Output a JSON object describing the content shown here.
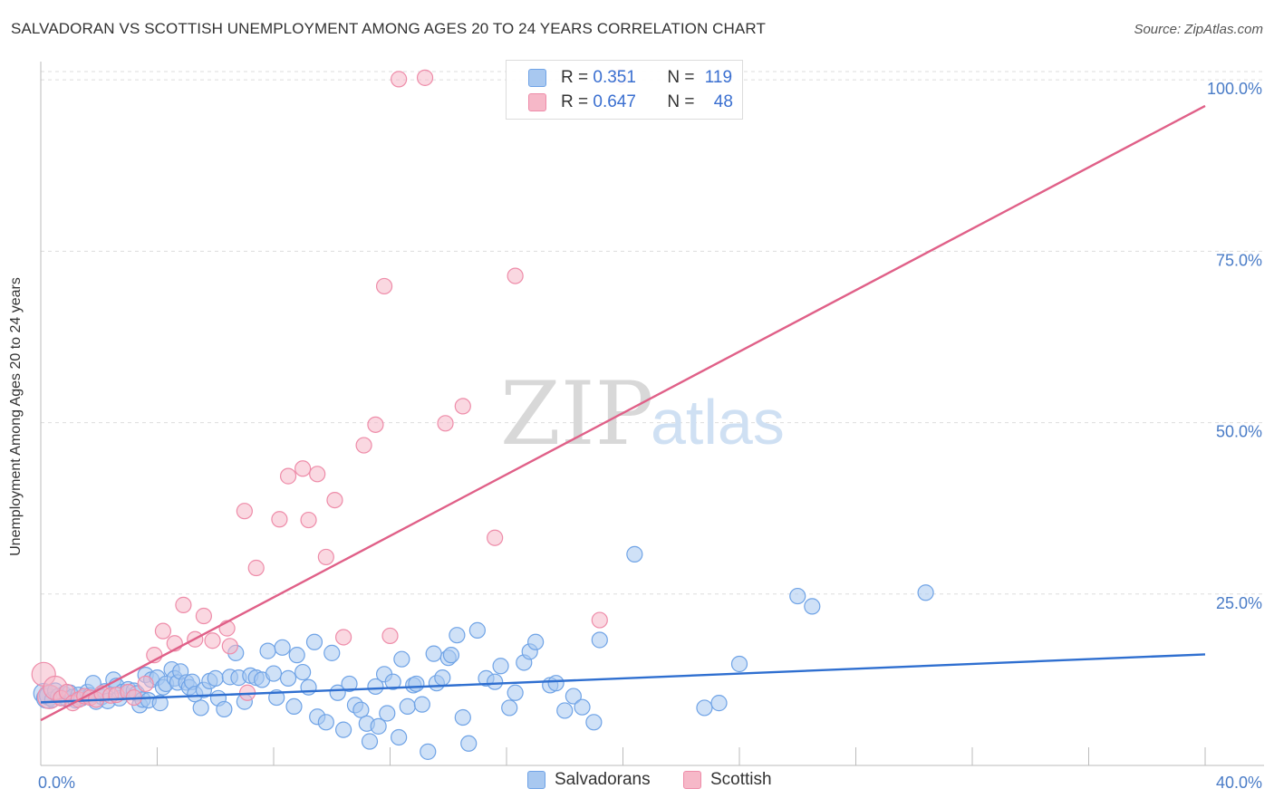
{
  "title": "SALVADORAN VS SCOTTISH UNEMPLOYMENT AMONG AGES 20 TO 24 YEARS CORRELATION CHART",
  "source": "Source: ZipAtlas.com",
  "watermark": {
    "zip": "ZIP",
    "atlas": "atlas"
  },
  "legend": {
    "rows": [
      {
        "r_label": "R = ",
        "r_value": "0.351",
        "n_label": "N = ",
        "n_value": "119",
        "color": "#a8c8f0"
      },
      {
        "r_label": "R = ",
        "r_value": "0.647",
        "n_label": "N = ",
        "n_value": "48",
        "color": "#f6b8c8"
      }
    ]
  },
  "bottom_legend": [
    {
      "label": "Salvadorans",
      "color": "#a8c8f0"
    },
    {
      "label": "Scottish",
      "color": "#f6b8c8"
    }
  ],
  "chart_data": {
    "type": "scatter",
    "title": "SALVADORAN VS SCOTTISH UNEMPLOYMENT AMONG AGES 20 TO 24 YEARS CORRELATION CHART",
    "xlabel": "",
    "ylabel": "Unemployment Among Ages 20 to 24 years",
    "xlim": [
      0,
      40
    ],
    "ylim": [
      0,
      102
    ],
    "x_tick_labels": [
      "0.0%",
      "40.0%"
    ],
    "y_tick_values": [
      25,
      50,
      75,
      100
    ],
    "y_tick_labels": [
      "25.0%",
      "50.0%",
      "75.0%",
      "100.0%"
    ],
    "grid": true,
    "legend_position": "top-center",
    "series": [
      {
        "name": "Salvadorans",
        "color": "#6fa3e6",
        "fill": "#a8c8f0",
        "trend": {
          "x0": 0,
          "y0": 9.2,
          "x1": 40,
          "y1": 16.2,
          "color": "#2f6fd0"
        },
        "points": [
          [
            0.1,
            10.5
          ],
          [
            0.2,
            9.8
          ],
          [
            0.3,
            10.2
          ],
          [
            0.4,
            9.6
          ],
          [
            0.5,
            10.9
          ],
          [
            0.6,
            10.1
          ],
          [
            0.7,
            9.9
          ],
          [
            0.8,
            10.4
          ],
          [
            0.9,
            9.7
          ],
          [
            1.0,
            10.6
          ],
          [
            1.1,
            10.0
          ],
          [
            1.2,
            9.5
          ],
          [
            1.3,
            10.3
          ],
          [
            1.4,
            9.8
          ],
          [
            1.6,
            10.7
          ],
          [
            1.7,
            10.2
          ],
          [
            1.8,
            12.0
          ],
          [
            1.9,
            9.3
          ],
          [
            2.1,
            10.0
          ],
          [
            2.2,
            10.8
          ],
          [
            2.3,
            9.4
          ],
          [
            2.5,
            12.5
          ],
          [
            2.6,
            11.6
          ],
          [
            2.7,
            9.8
          ],
          [
            2.8,
            10.7
          ],
          [
            3.0,
            11.1
          ],
          [
            3.2,
            10.9
          ],
          [
            3.3,
            10.5
          ],
          [
            3.4,
            8.8
          ],
          [
            3.5,
            9.6
          ],
          [
            3.6,
            13.2
          ],
          [
            3.7,
            9.5
          ],
          [
            3.8,
            12.5
          ],
          [
            4.0,
            12.8
          ],
          [
            4.1,
            9.1
          ],
          [
            4.2,
            11.4
          ],
          [
            4.3,
            11.9
          ],
          [
            4.5,
            14.0
          ],
          [
            4.6,
            12.7
          ],
          [
            4.7,
            12.1
          ],
          [
            4.8,
            13.7
          ],
          [
            5.0,
            12.1
          ],
          [
            5.1,
            11.4
          ],
          [
            5.2,
            12.2
          ],
          [
            5.3,
            10.4
          ],
          [
            5.5,
            8.4
          ],
          [
            5.6,
            11.0
          ],
          [
            5.8,
            12.3
          ],
          [
            6.0,
            12.7
          ],
          [
            6.1,
            9.8
          ],
          [
            6.3,
            8.2
          ],
          [
            6.5,
            12.9
          ],
          [
            6.7,
            16.4
          ],
          [
            6.8,
            12.8
          ],
          [
            7.0,
            9.3
          ],
          [
            7.2,
            13.1
          ],
          [
            7.4,
            12.8
          ],
          [
            7.6,
            12.5
          ],
          [
            7.8,
            16.7
          ],
          [
            8.0,
            13.4
          ],
          [
            8.1,
            9.9
          ],
          [
            8.3,
            17.2
          ],
          [
            8.5,
            12.7
          ],
          [
            8.7,
            8.6
          ],
          [
            8.8,
            16.1
          ],
          [
            9.0,
            13.6
          ],
          [
            9.2,
            11.4
          ],
          [
            9.4,
            18.0
          ],
          [
            9.5,
            7.1
          ],
          [
            9.8,
            6.3
          ],
          [
            10.0,
            16.4
          ],
          [
            10.2,
            10.6
          ],
          [
            10.4,
            5.2
          ],
          [
            10.6,
            11.9
          ],
          [
            10.8,
            8.8
          ],
          [
            11.0,
            8.1
          ],
          [
            11.2,
            6.1
          ],
          [
            11.3,
            3.5
          ],
          [
            11.5,
            11.5
          ],
          [
            11.6,
            5.7
          ],
          [
            11.8,
            13.3
          ],
          [
            11.9,
            7.6
          ],
          [
            12.1,
            12.2
          ],
          [
            12.3,
            4.1
          ],
          [
            12.4,
            15.5
          ],
          [
            12.6,
            8.6
          ],
          [
            12.8,
            11.7
          ],
          [
            12.9,
            11.9
          ],
          [
            13.1,
            8.9
          ],
          [
            13.3,
            2.0
          ],
          [
            13.5,
            16.3
          ],
          [
            13.6,
            12.0
          ],
          [
            13.8,
            12.8
          ],
          [
            14.0,
            15.7
          ],
          [
            14.1,
            16.1
          ],
          [
            14.3,
            19.0
          ],
          [
            14.5,
            7.0
          ],
          [
            14.7,
            3.2
          ],
          [
            15.0,
            19.7
          ],
          [
            15.3,
            12.7
          ],
          [
            15.6,
            12.2
          ],
          [
            15.8,
            14.5
          ],
          [
            16.1,
            8.4
          ],
          [
            16.3,
            10.6
          ],
          [
            16.6,
            15.0
          ],
          [
            16.8,
            16.6
          ],
          [
            17.0,
            18.0
          ],
          [
            17.5,
            11.7
          ],
          [
            17.7,
            12.0
          ],
          [
            18.0,
            8.0
          ],
          [
            18.3,
            10.1
          ],
          [
            18.6,
            8.5
          ],
          [
            19.0,
            6.3
          ],
          [
            19.2,
            18.3
          ],
          [
            20.4,
            30.8
          ],
          [
            22.8,
            8.4
          ],
          [
            23.3,
            9.1
          ],
          [
            24.0,
            14.8
          ],
          [
            26.0,
            24.7
          ],
          [
            26.5,
            23.2
          ],
          [
            30.4,
            25.2
          ]
        ]
      },
      {
        "name": "Scottish",
        "color": "#ee8ca9",
        "fill": "#f6b8c8",
        "trend": {
          "x0": 0,
          "y0": 6.6,
          "x1": 40,
          "y1": 96.2,
          "color": "#e06088"
        },
        "points": [
          [
            0.1,
            13.3
          ],
          [
            0.3,
            10.0
          ],
          [
            0.5,
            11.3
          ],
          [
            0.7,
            9.8
          ],
          [
            0.9,
            10.7
          ],
          [
            1.1,
            9.1
          ],
          [
            1.3,
            9.6
          ],
          [
            1.5,
            10.1
          ],
          [
            1.7,
            9.9
          ],
          [
            1.9,
            9.6
          ],
          [
            2.1,
            10.5
          ],
          [
            2.4,
            10.2
          ],
          [
            2.6,
            10.3
          ],
          [
            3.0,
            10.7
          ],
          [
            3.2,
            9.9
          ],
          [
            3.6,
            11.9
          ],
          [
            3.9,
            16.1
          ],
          [
            4.2,
            19.6
          ],
          [
            4.6,
            17.8
          ],
          [
            4.9,
            23.4
          ],
          [
            5.3,
            18.4
          ],
          [
            5.6,
            21.8
          ],
          [
            5.9,
            18.2
          ],
          [
            6.4,
            20.0
          ],
          [
            6.5,
            17.4
          ],
          [
            7.0,
            37.1
          ],
          [
            7.1,
            10.6
          ],
          [
            7.4,
            28.8
          ],
          [
            8.2,
            35.9
          ],
          [
            8.5,
            42.2
          ],
          [
            9.0,
            43.3
          ],
          [
            9.2,
            35.8
          ],
          [
            9.5,
            42.5
          ],
          [
            9.8,
            30.4
          ],
          [
            10.1,
            38.7
          ],
          [
            10.4,
            18.7
          ],
          [
            11.1,
            46.7
          ],
          [
            11.5,
            49.7
          ],
          [
            11.8,
            69.9
          ],
          [
            12.0,
            18.9
          ],
          [
            12.3,
            100.1
          ],
          [
            13.2,
            100.3
          ],
          [
            13.9,
            49.9
          ],
          [
            14.5,
            52.4
          ],
          [
            15.6,
            33.2
          ],
          [
            16.3,
            71.4
          ],
          [
            19.2,
            21.2
          ],
          [
            19.9,
            100.4
          ]
        ]
      }
    ]
  }
}
